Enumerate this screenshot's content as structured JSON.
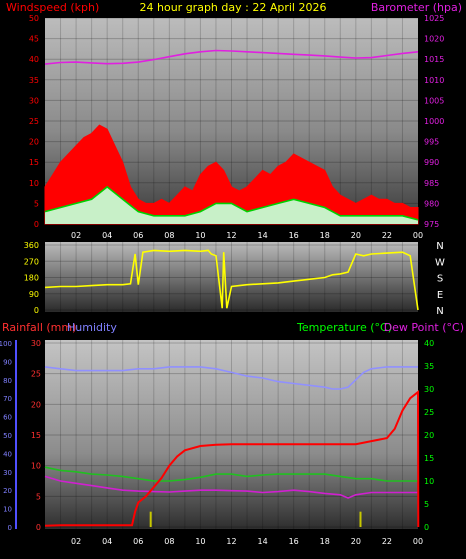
{
  "header": {
    "title": "24 hour graph day : 22 April 2026",
    "windspeed_label": "Windspeed (kph)",
    "barometer_label": "Barometer (hpa)"
  },
  "colors": {
    "windspeed": "#ff0000",
    "wind_avg": "#00d000",
    "gust_light": "#c8f0c8",
    "barometer": "#e020e0",
    "title": "#ffff00",
    "direction": "#ffff00",
    "rainfall": "#ff3030",
    "humidity": "#8080ff",
    "temperature": "#00ff00",
    "dew_point": "#e020e0",
    "rain_total": "#ff0000",
    "humidity_line": "#9090ff",
    "temp_line": "#20c020",
    "dew_line": "#d020d0",
    "rain_bars": "#c8c800"
  },
  "chart_data": [
    {
      "type": "area",
      "name": "windspeed-barometer",
      "x_ticks": [
        "02",
        "04",
        "06",
        "08",
        "10",
        "12",
        "14",
        "16",
        "18",
        "20",
        "22",
        "00"
      ],
      "x_tick_hours": [
        2,
        4,
        6,
        8,
        10,
        12,
        14,
        16,
        18,
        20,
        22,
        24
      ],
      "x_range": [
        0,
        24
      ],
      "y_left": {
        "label": "Windspeed (kph)",
        "ticks": [
          0,
          5,
          10,
          15,
          20,
          25,
          30,
          35,
          40,
          45,
          50
        ],
        "range": [
          0,
          50
        ]
      },
      "y_right": {
        "label": "Barometer (hpa)",
        "ticks": [
          975,
          980,
          985,
          990,
          995,
          1000,
          1005,
          1010,
          1015,
          1020,
          1025
        ],
        "range": [
          975,
          1025
        ]
      },
      "grid": true,
      "series": [
        {
          "name": "Gust",
          "axis": "left",
          "x": [
            0,
            0.5,
            1,
            1.5,
            2,
            2.5,
            3,
            3.5,
            4,
            4.5,
            5,
            5.5,
            6,
            6.5,
            7,
            7.5,
            8,
            8.5,
            9,
            9.5,
            10,
            10.5,
            11,
            11.5,
            12,
            12.5,
            13,
            13.5,
            14,
            14.5,
            15,
            15.5,
            16,
            16.5,
            17,
            17.5,
            18,
            18.5,
            19,
            19.5,
            20,
            20.5,
            21,
            21.5,
            22,
            22.5,
            23,
            23.5,
            24
          ],
          "y": [
            9,
            12,
            15,
            17,
            19,
            21,
            22,
            24,
            23,
            19,
            15,
            9,
            6,
            5,
            5,
            6,
            5,
            7,
            9,
            8,
            12,
            14,
            15,
            13,
            9,
            8,
            9,
            11,
            13,
            12,
            14,
            15,
            17,
            16,
            15,
            14,
            13,
            9,
            7,
            6,
            5,
            6,
            7,
            6,
            6,
            5,
            5,
            4,
            4
          ]
        },
        {
          "name": "Average",
          "axis": "left",
          "x": [
            0,
            1,
            2,
            3,
            4,
            5,
            6,
            7,
            8,
            9,
            10,
            11,
            12,
            13,
            14,
            15,
            16,
            17,
            18,
            19,
            20,
            21,
            22,
            23,
            24
          ],
          "y": [
            3,
            4,
            5,
            6,
            9,
            6,
            3,
            2,
            2,
            2,
            3,
            5,
            5,
            3,
            4,
            5,
            6,
            5,
            4,
            2,
            2,
            2,
            2,
            2,
            1
          ]
        },
        {
          "name": "Barometer",
          "axis": "right",
          "x": [
            0,
            1,
            2,
            3,
            4,
            5,
            6,
            7,
            8,
            9,
            10,
            11,
            12,
            13,
            14,
            15,
            16,
            17,
            18,
            19,
            20,
            21,
            22,
            23,
            24
          ],
          "y": [
            1013.8,
            1014.2,
            1014.3,
            1014.1,
            1013.9,
            1014.0,
            1014.3,
            1014.9,
            1015.6,
            1016.3,
            1016.8,
            1017.1,
            1017.0,
            1016.8,
            1016.6,
            1016.4,
            1016.2,
            1016.0,
            1015.8,
            1015.5,
            1015.3,
            1015.4,
            1015.9,
            1016.4,
            1016.8
          ]
        }
      ]
    },
    {
      "type": "line",
      "name": "wind-direction",
      "x_range": [
        0,
        24
      ],
      "y_left": {
        "ticks": [
          0,
          90,
          180,
          270,
          360
        ],
        "range": [
          0,
          360
        ]
      },
      "y_right_labels": [
        "N",
        "W",
        "S",
        "E",
        "N"
      ],
      "grid": true,
      "series": [
        {
          "name": "Direction",
          "x": [
            0,
            1,
            2,
            3,
            4,
            5,
            5.5,
            5.8,
            6.0,
            6.3,
            7,
            8,
            9,
            10,
            10.5,
            10.7,
            11,
            11.4,
            11.5,
            11.7,
            12,
            12.5,
            13,
            14,
            15,
            16,
            17,
            18,
            18.5,
            19,
            19.5,
            20,
            20.5,
            21,
            22,
            23,
            23.5,
            24
          ],
          "y": [
            125,
            130,
            130,
            135,
            140,
            140,
            145,
            310,
            140,
            320,
            330,
            325,
            330,
            325,
            330,
            310,
            300,
            10,
            320,
            10,
            130,
            135,
            140,
            145,
            150,
            160,
            170,
            180,
            195,
            200,
            210,
            310,
            300,
            310,
            315,
            320,
            300,
            0
          ]
        }
      ]
    },
    {
      "type": "line",
      "name": "rain-humidity-temperature",
      "x_ticks": [
        "02",
        "04",
        "06",
        "08",
        "10",
        "12",
        "14",
        "16",
        "18",
        "20",
        "22",
        "00"
      ],
      "x_tick_hours": [
        2,
        4,
        6,
        8,
        10,
        12,
        14,
        16,
        18,
        20,
        22,
        24
      ],
      "x_range": [
        0,
        24
      ],
      "labels": {
        "rainfall": "Rainfall (mm)",
        "humidity": "Humidity",
        "temperature": "Temperature (°C)",
        "dew_point": "Dew Point (°C)"
      },
      "y_humidity": {
        "ticks": [
          0,
          10,
          20,
          30,
          40,
          50,
          60,
          70,
          80,
          90,
          100
        ],
        "range": [
          0,
          100
        ]
      },
      "y_rain": {
        "ticks": [
          0,
          5,
          10,
          15,
          20,
          25,
          30
        ],
        "range": [
          0,
          30
        ]
      },
      "y_temp": {
        "ticks": [
          0,
          5,
          10,
          15,
          20,
          25,
          30,
          35,
          40
        ],
        "range": [
          0,
          40
        ]
      },
      "grid": true,
      "series": [
        {
          "name": "Humidity",
          "axis": "humidity",
          "x": [
            0,
            1,
            2,
            3,
            4,
            5,
            6,
            7,
            8,
            9,
            10,
            11,
            12,
            13,
            14,
            15,
            16,
            17,
            18,
            18.5,
            19,
            19.5,
            20,
            20.5,
            21,
            22,
            23,
            24
          ],
          "y": [
            87,
            86,
            85,
            85,
            85,
            85,
            86,
            86,
            87,
            87,
            87,
            86,
            84,
            82,
            81,
            79,
            78,
            77,
            76,
            75,
            75,
            76,
            80,
            84,
            86,
            87,
            87,
            87
          ]
        },
        {
          "name": "Temperature",
          "axis": "temp",
          "x": [
            0,
            1,
            2,
            3,
            4,
            5,
            6,
            7,
            8,
            9,
            10,
            11,
            12,
            13,
            14,
            15,
            16,
            17,
            18,
            19,
            20,
            21,
            22,
            23,
            24
          ],
          "y": [
            13,
            12.3,
            12,
            11.5,
            11.3,
            11,
            10.5,
            10,
            10,
            10.3,
            10.8,
            11.5,
            11.5,
            11,
            11.3,
            11.5,
            11.5,
            11.5,
            11.5,
            11,
            10.5,
            10.5,
            10,
            10,
            10
          ]
        },
        {
          "name": "Dew Point",
          "axis": "temp",
          "x": [
            0,
            1,
            2,
            3,
            4,
            5,
            6,
            7,
            8,
            9,
            10,
            11,
            12,
            13,
            14,
            15,
            16,
            17,
            18,
            19,
            19.5,
            20,
            21,
            22,
            23,
            24
          ],
          "y": [
            11,
            10,
            9.5,
            9,
            8.5,
            8,
            7.8,
            7.7,
            7.6,
            7.8,
            8,
            8,
            7.9,
            7.8,
            7.5,
            7.7,
            8,
            7.7,
            7.3,
            7,
            6.3,
            7,
            7.5,
            7.5,
            7.5,
            7.5
          ]
        },
        {
          "name": "Rainfall",
          "axis": "rain",
          "x": [
            0,
            1,
            2,
            3,
            4,
            5,
            5.6,
            5.8,
            6,
            6.5,
            7,
            7.5,
            8,
            8.5,
            9,
            10,
            11,
            12,
            13,
            14,
            15,
            16,
            17,
            18,
            19,
            20,
            21,
            22,
            22.5,
            23,
            23.5,
            24,
            24.02
          ],
          "y": [
            0.2,
            0.3,
            0.3,
            0.3,
            0.3,
            0.3,
            0.3,
            2.5,
            4,
            5,
            6.5,
            8,
            10,
            11.5,
            12.5,
            13.2,
            13.4,
            13.5,
            13.5,
            13.5,
            13.5,
            13.5,
            13.5,
            13.5,
            13.5,
            13.5,
            14,
            14.5,
            16,
            19,
            21,
            22,
            0
          ]
        },
        {
          "name": "Rain Rate",
          "axis": "rain",
          "type": "bar",
          "x": [
            6.8,
            20.3
          ],
          "y": [
            2.5,
            2.5
          ]
        }
      ]
    }
  ]
}
